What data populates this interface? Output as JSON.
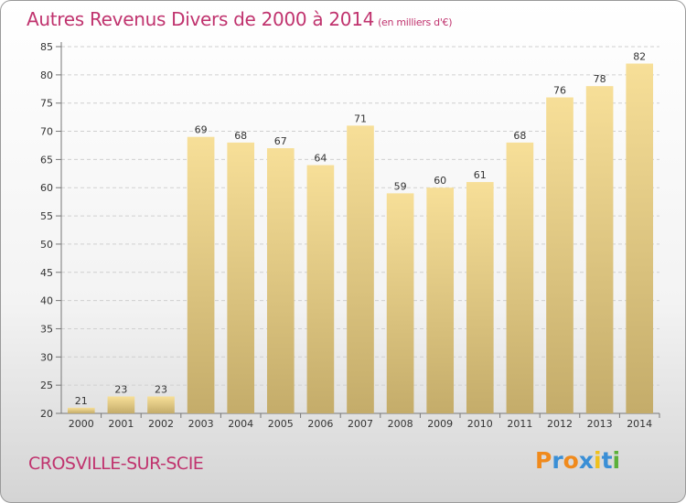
{
  "header": {
    "title": "Autres Revenus Divers de 2000 à 2014",
    "unit": "(en milliers d'€)"
  },
  "footer": {
    "city": "CROSVILLE-SUR-SCIE",
    "brand_letters": [
      "P",
      "r",
      "o",
      "x",
      "i",
      "t",
      "i"
    ]
  },
  "colors": {
    "title": "#c0336e",
    "bar_top": "#f7df98",
    "bar_bottom": "#c4ac6a",
    "grid": "#d0d0d0",
    "brand": [
      "#f08a1c",
      "#3a8fd6",
      "#f08a1c",
      "#3a8fd6",
      "#f0c11c",
      "#3a8fd6",
      "#5bb03a"
    ]
  },
  "chart_data": {
    "type": "bar",
    "title": "Autres Revenus Divers de 2000 à 2014",
    "xlabel": "",
    "ylabel": "",
    "categories": [
      "2000",
      "2001",
      "2002",
      "2003",
      "2004",
      "2005",
      "2006",
      "2007",
      "2008",
      "2009",
      "2010",
      "2011",
      "2012",
      "2013",
      "2014"
    ],
    "values": [
      21,
      23,
      23,
      69,
      68,
      67,
      64,
      71,
      59,
      60,
      61,
      68,
      76,
      78,
      82
    ],
    "ylim": [
      20,
      85
    ],
    "yticks": [
      20,
      25,
      30,
      35,
      40,
      45,
      50,
      55,
      60,
      65,
      70,
      75,
      80,
      85
    ],
    "grid": true,
    "legend": "none"
  }
}
